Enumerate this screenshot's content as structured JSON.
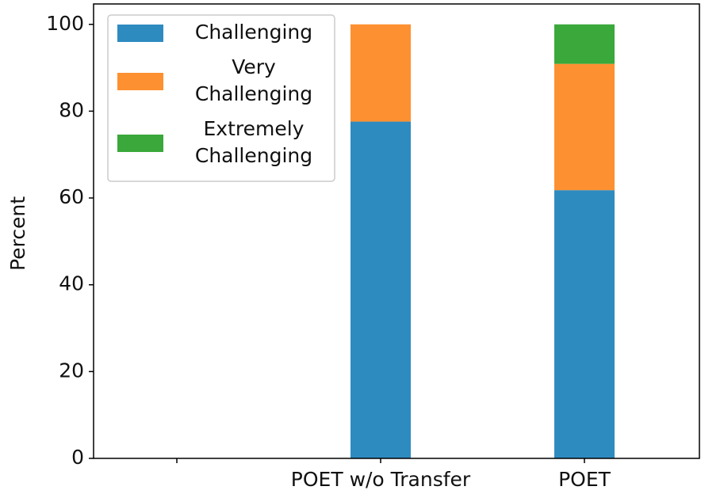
{
  "chart_data": {
    "type": "stacked_bar",
    "ylabel": "Percent",
    "categories": [
      null,
      "POET w/o Transfer",
      "POET"
    ],
    "series": [
      {
        "name": "Challenging",
        "color": "#2e8bc0",
        "values": [
          0,
          77.6,
          61.8
        ]
      },
      {
        "name": "Very\nChallenging",
        "color": "#fd9030",
        "values": [
          0,
          22.4,
          29.1
        ]
      },
      {
        "name": "Extremely\nChallenging",
        "color": "#3aa83a",
        "values": [
          0,
          0,
          9.1
        ]
      }
    ],
    "ylim": [
      0,
      104.7
    ],
    "yticks": [
      0,
      20,
      40,
      60,
      80,
      100
    ],
    "legend": "upper left",
    "grid": false
  }
}
